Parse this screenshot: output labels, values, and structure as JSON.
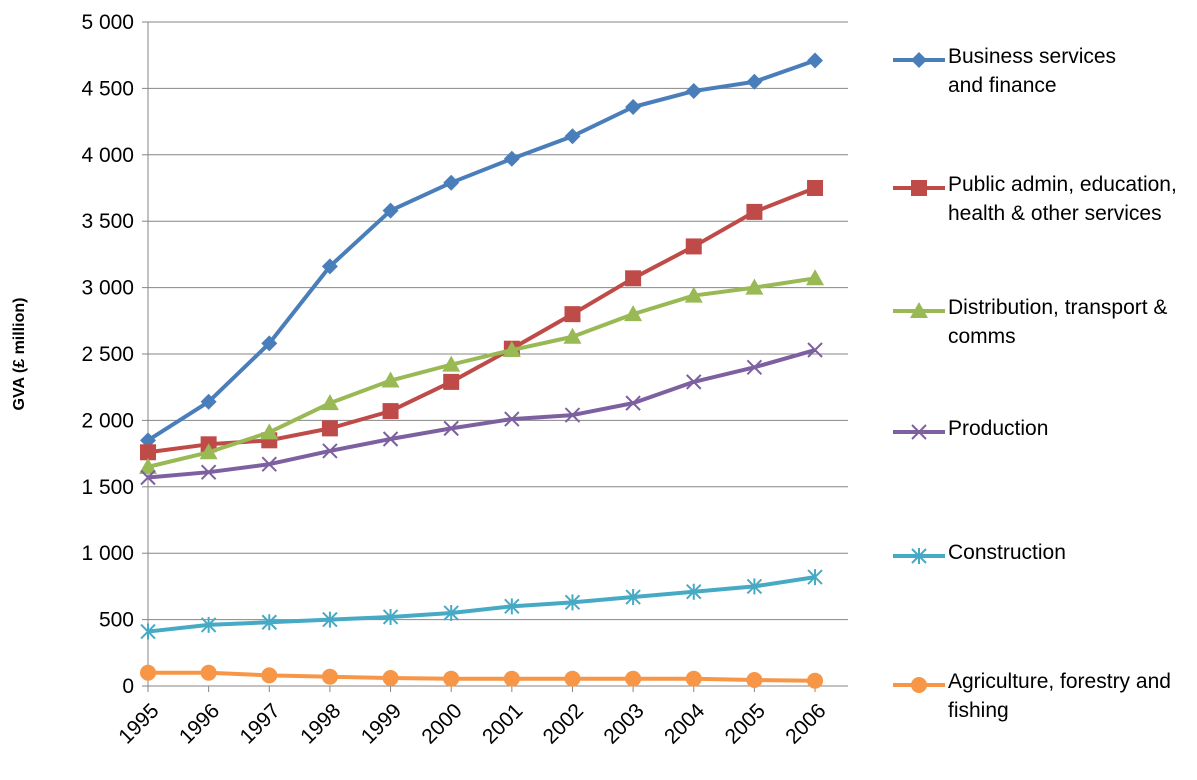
{
  "chart_data": {
    "type": "line",
    "y_label": "GVA (£ million)",
    "categories": [
      "1995",
      "1996",
      "1997",
      "1998",
      "1999",
      "2000",
      "2001",
      "2002",
      "2003",
      "2004",
      "2005",
      "2006"
    ],
    "ylim": [
      0,
      5000
    ],
    "yticks": [
      0,
      500,
      {
        "value": 1000,
        "label": "1 000"
      },
      {
        "value": 1500,
        "label": "1 500"
      },
      {
        "value": 2000,
        "label": "2 000"
      },
      {
        "value": 2500,
        "label": "2 500"
      },
      {
        "value": 3000,
        "label": "3 000"
      },
      {
        "value": 3500,
        "label": "3 500"
      },
      {
        "value": 4000,
        "label": "4 000"
      },
      {
        "value": 4500,
        "label": "4 500"
      },
      {
        "value": 5000,
        "label": "5 000"
      }
    ],
    "grid": true,
    "legend": "right",
    "series": [
      {
        "name": "Business services and finance",
        "color": "#4a7ebb",
        "marker": "diamond",
        "values": [
          1850,
          2140,
          2580,
          3160,
          3580,
          3790,
          3970,
          4140,
          4360,
          4480,
          4550,
          4710
        ]
      },
      {
        "name": "Public admin, education, health & other services",
        "color": "#be4b48",
        "marker": "square",
        "values": [
          1760,
          1820,
          1850,
          1940,
          2070,
          2290,
          2540,
          2800,
          3070,
          3310,
          3570,
          3750
        ]
      },
      {
        "name": "Distribution, transport & comms",
        "color": "#98b954",
        "marker": "triangle",
        "values": [
          1650,
          1760,
          1910,
          2130,
          2300,
          2420,
          2530,
          2630,
          2800,
          2940,
          3000,
          3070
        ]
      },
      {
        "name": "Production",
        "color": "#7d60a0",
        "marker": "x",
        "values": [
          1570,
          1610,
          1670,
          1770,
          1860,
          1940,
          2010,
          2040,
          2130,
          2290,
          2400,
          2530
        ]
      },
      {
        "name": "Construction",
        "color": "#46aac5",
        "marker": "star",
        "values": [
          410,
          460,
          480,
          500,
          520,
          550,
          600,
          630,
          670,
          710,
          750,
          820
        ]
      },
      {
        "name": "Agriculture, forestry and fishing",
        "color": "#f79646",
        "marker": "circle",
        "values": [
          100,
          100,
          80,
          70,
          60,
          55,
          55,
          55,
          55,
          55,
          45,
          40
        ]
      }
    ]
  }
}
